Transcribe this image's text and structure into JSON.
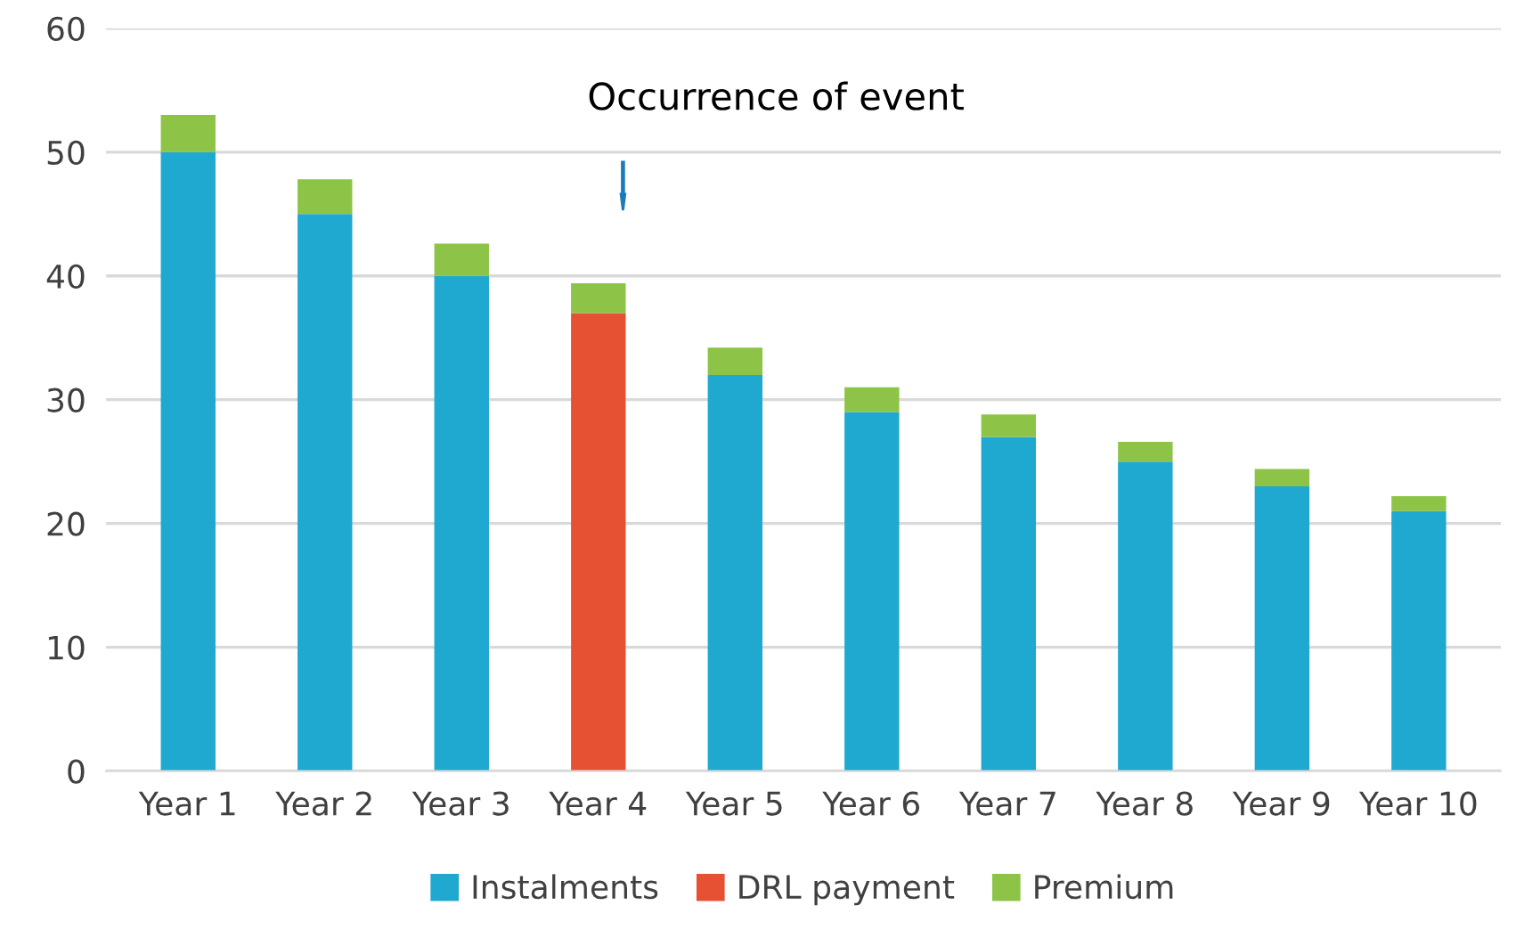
{
  "chart_data": {
    "type": "bar",
    "stacked": true,
    "categories": [
      "Year 1",
      "Year 2",
      "Year 3",
      "Year 4",
      "Year 5",
      "Year 6",
      "Year 7",
      "Year 8",
      "Year 9",
      "Year 10"
    ],
    "series": [
      {
        "name": "Instalments",
        "color": "#1fa8d0",
        "values": [
          50,
          45,
          40,
          null,
          32,
          29,
          27,
          25,
          23,
          21
        ]
      },
      {
        "name": "DRL payment",
        "color": "#e65133",
        "values": [
          null,
          null,
          null,
          37,
          null,
          null,
          null,
          null,
          null,
          null
        ]
      },
      {
        "name": "Premium",
        "color": "#8dc448",
        "values": [
          3,
          2.8,
          2.6,
          2.4,
          2.2,
          2,
          1.8,
          1.6,
          1.4,
          1.2
        ]
      }
    ],
    "ylim": [
      0,
      60
    ],
    "yticks": [
      0,
      10,
      20,
      30,
      40,
      50,
      60
    ],
    "grid": "y",
    "legend": "bottom",
    "annotations": [
      "Occurrence of event"
    ]
  }
}
